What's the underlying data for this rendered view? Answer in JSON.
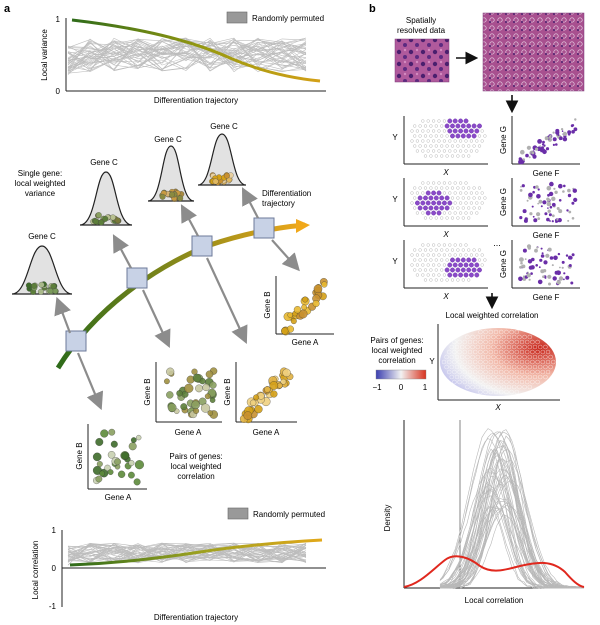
{
  "panel_a": {
    "label": "a",
    "top_plot": {
      "ylabel": "Local variance",
      "xlabel": "Differentiation trajectory",
      "legend": "Randomly permuted",
      "y_ticks": [
        "1",
        "0"
      ]
    },
    "middle": {
      "single_gene_caption": [
        "Single gene:",
        "local weighted",
        "variance"
      ],
      "gene_c_labels": [
        "Gene C",
        "Gene C",
        "Gene C",
        "Gene C"
      ],
      "trajectory_label": [
        "Differentiation",
        "trajectory"
      ],
      "pair_caption": [
        "Pairs of genes:",
        "local weighted",
        "correlation"
      ],
      "gene_a": "Gene A",
      "gene_b": "Gene B"
    },
    "bottom_plot": {
      "ylabel": "Local correlation",
      "xlabel": "Differentiation trajectory",
      "legend": "Randomly permuted",
      "y_ticks": [
        "1",
        "0",
        "-1"
      ]
    }
  },
  "panel_b": {
    "label": "b",
    "spatial_label": [
      "Spatially",
      "resolved data"
    ],
    "axis_x": "X",
    "axis_y": "Y",
    "gene_g": "Gene G",
    "gene_f": "Gene F",
    "ellipsis": "...",
    "lwc_title": "Local weighted correlation",
    "pair_caption": [
      "Pairs of genes:",
      "local weighted",
      "correlation"
    ],
    "colorbar_ticks": [
      "−1",
      "0",
      "1"
    ],
    "density_ylabel": "Density",
    "density_xlabel": "Local correlation"
  },
  "colors": {
    "green": "#2e6b1a",
    "gold": "#d4a017",
    "red": "#e0281e",
    "grey": "#b5b5b5",
    "purple": "#7a3fb8",
    "box": "#c8d2e6"
  }
}
